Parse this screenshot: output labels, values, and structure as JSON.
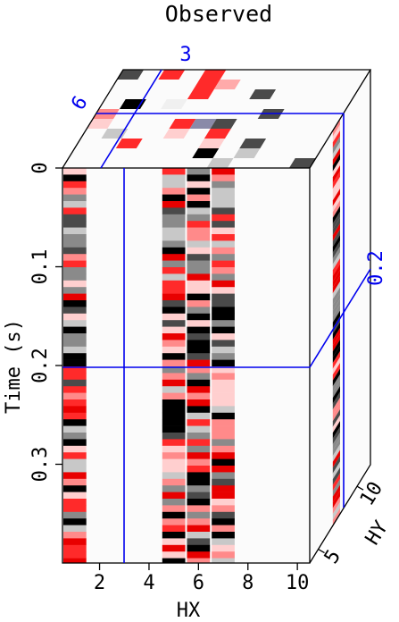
{
  "chart_data": {
    "type": "heatmap",
    "title": "Observed",
    "xlabel": "HX",
    "ylabel": "Time (s)",
    "zlabel": "HY",
    "x_ticks": [
      "2",
      "4",
      "6",
      "8",
      "10"
    ],
    "y_ticks": [
      "0",
      "0.1",
      "0.2",
      "0.3"
    ],
    "z_ticks": [
      "5",
      "10"
    ],
    "x_range": [
      0.5,
      10.5
    ],
    "y_range": [
      0,
      0.4
    ],
    "slice_markers": {
      "hx": "3",
      "hy": "6",
      "time": "0.2"
    },
    "colormap": {
      "palette": [
        "#ffffff",
        "#ffcfcf",
        "#ff8a8a",
        "#ff2a2a",
        "#e80000",
        "#c8c8c8",
        "#8a8a8a",
        "#4a4a4a",
        "#000000"
      ]
    },
    "front_panel": {
      "active_columns": [
        1,
        5,
        6,
        7
      ],
      "band_fraction": [
        0.02,
        0.98
      ]
    },
    "top_panel": {
      "cells": [
        {
          "row": 1,
          "col": 8,
          "color": "#c8c8c8"
        },
        {
          "row": 1,
          "col": 12,
          "color": "#4a4a4a"
        },
        {
          "row": 2,
          "col": 7,
          "color": "#000000"
        },
        {
          "row": 2,
          "col": 9,
          "color": "#c8c8c8"
        },
        {
          "row": 3,
          "col": 3,
          "color": "#ff2a2a"
        },
        {
          "row": 3,
          "col": 7,
          "color": "#ffcfcf"
        },
        {
          "row": 3,
          "col": 9,
          "color": "#4a4a4a"
        },
        {
          "row": 4,
          "col": 2,
          "color": "#c8c8c8"
        },
        {
          "row": 4,
          "col": 5,
          "color": "#ffcfcf"
        },
        {
          "row": 4,
          "col": 7,
          "color": "#ff2a2a"
        },
        {
          "row": 5,
          "col": 1,
          "color": "#ffcfcf"
        },
        {
          "row": 5,
          "col": 5,
          "color": "#ff2a2a"
        },
        {
          "row": 5,
          "col": 6,
          "color": "#8a8aa8"
        },
        {
          "row": 5,
          "col": 7,
          "color": "#4a4a4a"
        },
        {
          "row": 6,
          "col": 1,
          "color": "#ff8a8a"
        },
        {
          "row": 6,
          "col": 9,
          "color": "#4a4a4a"
        },
        {
          "row": 7,
          "col": 2,
          "color": "#000000"
        },
        {
          "row": 7,
          "col": 4,
          "color": "#f0f0f0"
        },
        {
          "row": 8,
          "col": 5,
          "color": "#ff2a2a"
        },
        {
          "row": 8,
          "col": 8,
          "color": "#4a4a4a"
        },
        {
          "row": 9,
          "col": 5,
          "color": "#ff2a2a"
        },
        {
          "row": 9,
          "col": 6,
          "color": "#ffaaaa"
        },
        {
          "row": 10,
          "col": 1,
          "color": "#4a4a4a"
        },
        {
          "row": 10,
          "col": 3,
          "color": "#ff2a2a"
        },
        {
          "row": 10,
          "col": 5,
          "color": "#ff2a2a"
        }
      ]
    }
  }
}
